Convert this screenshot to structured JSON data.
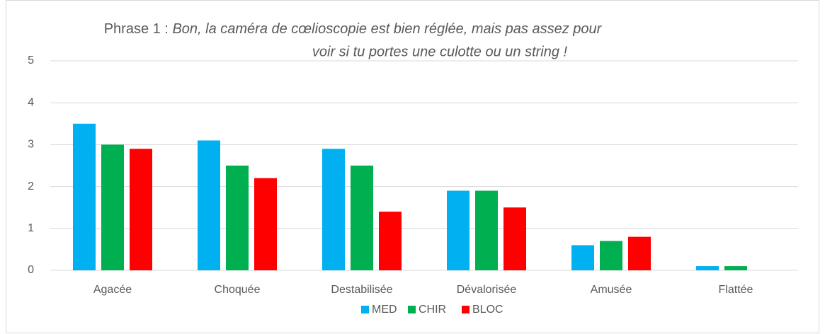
{
  "chart_data": {
    "type": "bar",
    "title": "Phrase 1 :",
    "title_quote": [
      "Bon, la caméra de cœlioscopie est bien réglée, mais pas assez pour",
      "voir si tu portes une culotte ou un string !"
    ],
    "categories": [
      "Agacée",
      "Choquée",
      "Destabilisée",
      "Dévalorisée",
      "Amusée",
      "Flattée"
    ],
    "series": [
      {
        "name": "MED",
        "color": "#00b0f0",
        "values": [
          3.5,
          3.1,
          2.9,
          1.9,
          0.6,
          0.1
        ]
      },
      {
        "name": "CHIR",
        "color": "#00b050",
        "values": [
          3.0,
          2.5,
          2.5,
          1.9,
          0.7,
          0.1
        ]
      },
      {
        "name": "BLOC",
        "color": "#ff0000",
        "values": [
          2.9,
          2.2,
          1.4,
          1.5,
          0.8,
          0
        ]
      }
    ],
    "ylim": [
      0,
      5
    ],
    "yticks": [
      0,
      1,
      2,
      3,
      4,
      5
    ],
    "grid": true,
    "legend": "bottom"
  }
}
